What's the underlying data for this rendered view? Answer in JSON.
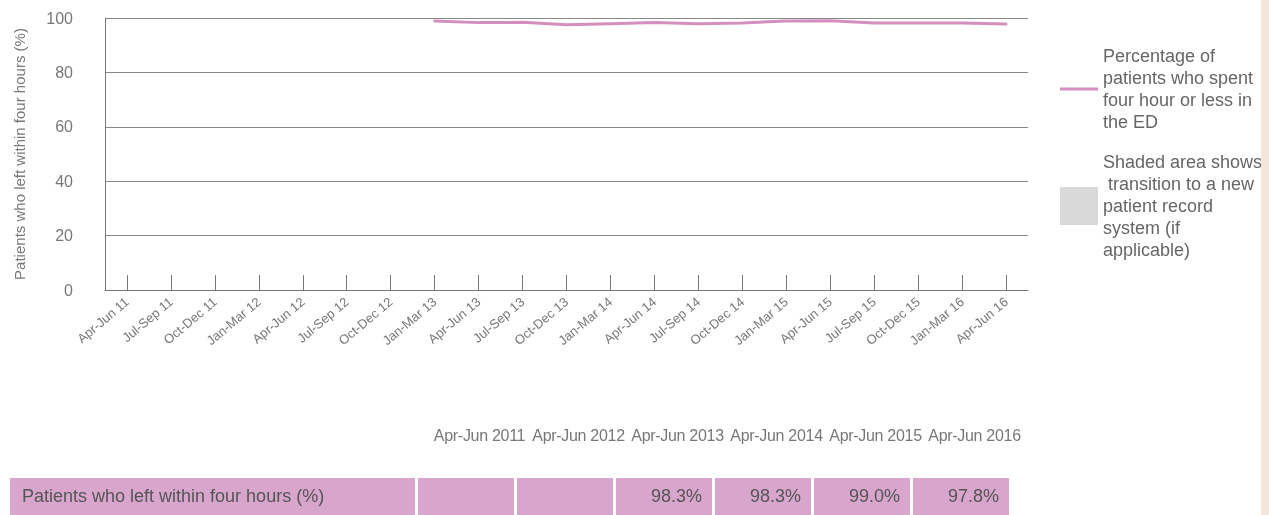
{
  "chart_data": [
    {
      "type": "line",
      "ylabel": "Patients who left within four hours (%)",
      "categories": [
        "Apr-Jun 11",
        "Jul-Sep 11",
        "Oct-Dec 11",
        "Jan-Mar 12",
        "Apr-Jun 12",
        "Jul-Sep 12",
        "Oct-Dec 12",
        "Jan-Mar 13",
        "Apr-Jun 13",
        "Jul-Sep 13",
        "Oct-Dec 13",
        "Jan-Mar 14",
        "Apr-Jun 14",
        "Jul-Sep 14",
        "Oct-Dec 14",
        "Jan-Mar 15",
        "Apr-Jun 15",
        "Jul-Sep 15",
        "Oct-Dec 15",
        "Jan-Mar 16",
        "Apr-Jun 16"
      ],
      "series": [
        {
          "name": "Percentage of patients who spent four hour or less in the ED",
          "color": "#d48fbf",
          "values": [
            null,
            null,
            null,
            null,
            null,
            null,
            null,
            98.9,
            98.3,
            98.4,
            97.5,
            97.9,
            98.3,
            97.9,
            98.2,
            98.9,
            99.0,
            98.2,
            98.2,
            98.2,
            97.8
          ]
        },
        {
          "type": "area",
          "name": "Shaded area shows transition to a new patient record system (if applicable)",
          "color": "#d9d9d9",
          "values": [
            null,
            null,
            null,
            null,
            null,
            null,
            null,
            null,
            null,
            null,
            null,
            null,
            null,
            null,
            null,
            null,
            null,
            null,
            null,
            null,
            null
          ]
        }
      ],
      "ylim": [
        0,
        100
      ],
      "yticks": [
        0,
        20,
        40,
        60,
        80,
        100
      ],
      "grid": "y",
      "legend": "right",
      "marker": "none",
      "line_style": "solid"
    },
    {
      "type": "other",
      "annotations": [
        "Apr-Jun 2011",
        "Apr-Jun 2012",
        "Apr-Jun 2013",
        "Apr-Jun 2014",
        "Apr-Jun 2015",
        "Apr-Jun 2016"
      ]
    },
    {
      "type": "other",
      "annotations": [
        "Patients who left within four hours (%)",
        "98.3%",
        "98.3%",
        "99.0%",
        "97.8%"
      ]
    }
  ]
}
